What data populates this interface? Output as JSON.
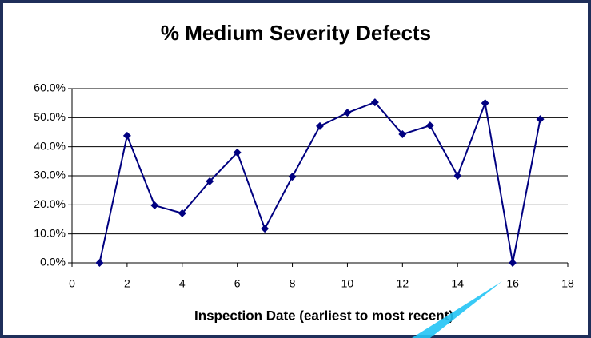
{
  "chart_data": {
    "type": "line",
    "title": "% Medium Severity Defects",
    "x_label": "Inspection Date (earliest to most recent)",
    "x": [
      1,
      2,
      3,
      4,
      5,
      6,
      7,
      8,
      9,
      10,
      11,
      12,
      13,
      14,
      15,
      16,
      17
    ],
    "series": [
      {
        "name": "% Medium Severity Defects",
        "color": "#000080",
        "values": [
          0,
          43.8,
          19.8,
          17.1,
          28.1,
          38,
          11.8,
          29.7,
          47.1,
          51.7,
          55.3,
          44.3,
          47.3,
          30,
          55,
          0,
          49.5
        ]
      }
    ],
    "xlim": [
      0,
      18
    ],
    "xticks": [
      0,
      2,
      4,
      6,
      8,
      10,
      12,
      14,
      16,
      18
    ],
    "ylim": [
      0,
      60
    ],
    "yticks": [
      {
        "value": 0,
        "label": "0.0%"
      },
      {
        "value": 10,
        "label": "10.0%"
      },
      {
        "value": 20,
        "label": "20.0%"
      },
      {
        "value": 30,
        "label": "30.0%"
      },
      {
        "value": 40,
        "label": "40.0%"
      },
      {
        "value": 50,
        "label": "50.0%"
      },
      {
        "value": 60,
        "label": "60.0%"
      }
    ],
    "grid": true,
    "legend": false
  }
}
